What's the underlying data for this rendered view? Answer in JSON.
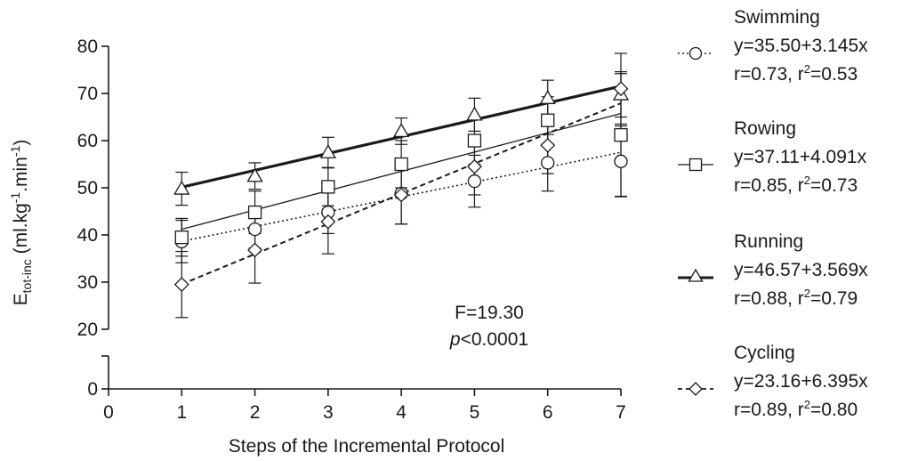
{
  "chart_data": {
    "type": "line",
    "xlabel": "Steps of the Incremental Protocol",
    "ylabel": {
      "main": "E",
      "sub": "tot-inc",
      "rest1": " (ml.kg",
      "sup1": "-1",
      "rest2": ".min",
      "sup2": "-1",
      "rest3": ")"
    },
    "xlim": [
      0,
      7
    ],
    "ylim": [
      0,
      80
    ],
    "y_axis_break": [
      5,
      20
    ],
    "x_ticks": [
      "0",
      "1",
      "2",
      "3",
      "4",
      "5",
      "6",
      "7"
    ],
    "y_ticks": [
      "0",
      "20",
      "30",
      "40",
      "50",
      "60",
      "70",
      "80"
    ],
    "grid": false,
    "legend_position": "right",
    "annotation": {
      "line1": "F=19.30",
      "p_symbol": "p",
      "line2_rest": "<0.0001"
    },
    "series": [
      {
        "name": "Swimming",
        "marker": "circle",
        "line_style": "dotted",
        "x": [
          1,
          2,
          3,
          4,
          5,
          6,
          7
        ],
        "values": [
          38.6,
          41.2,
          44.8,
          48.8,
          51.4,
          55.3,
          55.6
        ],
        "errors": [
          4.5,
          4.0,
          4.5,
          6.5,
          5.5,
          6.0,
          7.5
        ],
        "fit": {
          "intercept": 35.5,
          "slope": 3.145
        },
        "equation": "y=35.50+3.145x",
        "r_text": "r=0.73, r",
        "r2_sup": "2",
        "r2_value": "=0.53"
      },
      {
        "name": "Rowing",
        "marker": "square",
        "line_style": "solid",
        "x": [
          1,
          2,
          3,
          4,
          5,
          6,
          7
        ],
        "values": [
          39.5,
          44.8,
          50.2,
          55.0,
          60.0,
          64.3,
          61.2
        ],
        "errors": [
          4.0,
          4.5,
          4.0,
          5.0,
          5.0,
          5.0,
          13.0
        ],
        "fit": {
          "intercept": 37.11,
          "slope": 4.091
        },
        "equation": "y=37.11+4.091x",
        "r_text": "r=0.85, r",
        "r2_sup": "2",
        "r2_value": "=0.73"
      },
      {
        "name": "Running",
        "marker": "triangle",
        "line_style": "thick",
        "x": [
          1,
          2,
          3,
          4,
          5,
          6,
          7
        ],
        "values": [
          49.8,
          52.5,
          57.5,
          62.0,
          65.5,
          69.0,
          69.8
        ],
        "errors": [
          3.5,
          2.8,
          3.2,
          2.8,
          3.5,
          3.8,
          4.8
        ],
        "fit": {
          "intercept": 46.57,
          "slope": 3.569
        },
        "equation": "y=46.57+3.569x",
        "r_text": "r=0.88, r",
        "r2_sup": "2",
        "r2_value": "=0.79"
      },
      {
        "name": "Cycling",
        "marker": "diamond",
        "line_style": "dashed",
        "x": [
          1,
          2,
          3,
          4,
          5,
          6,
          7
        ],
        "values": [
          29.5,
          36.8,
          42.8,
          48.5,
          54.5,
          59.0,
          71.0
        ],
        "errors": [
          7.0,
          7.0,
          6.8,
          6.2,
          6.0,
          6.0,
          7.5
        ],
        "fit": {
          "intercept": 23.16,
          "slope": 6.395
        },
        "equation": "y=23.16+6.395x",
        "r_text": "r=0.89, r",
        "r2_sup": "2",
        "r2_value": "=0.80"
      }
    ]
  }
}
